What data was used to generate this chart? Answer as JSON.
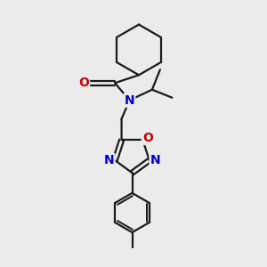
{
  "background_color": "#ebebeb",
  "figsize": [
    3.0,
    3.0
  ],
  "dpi": 100,
  "atom_colors": {
    "N": "#0000cc",
    "O": "#cc0000"
  },
  "bond_color": "#1a1a1a",
  "bond_width": 1.6,
  "font_size_atoms": 10
}
